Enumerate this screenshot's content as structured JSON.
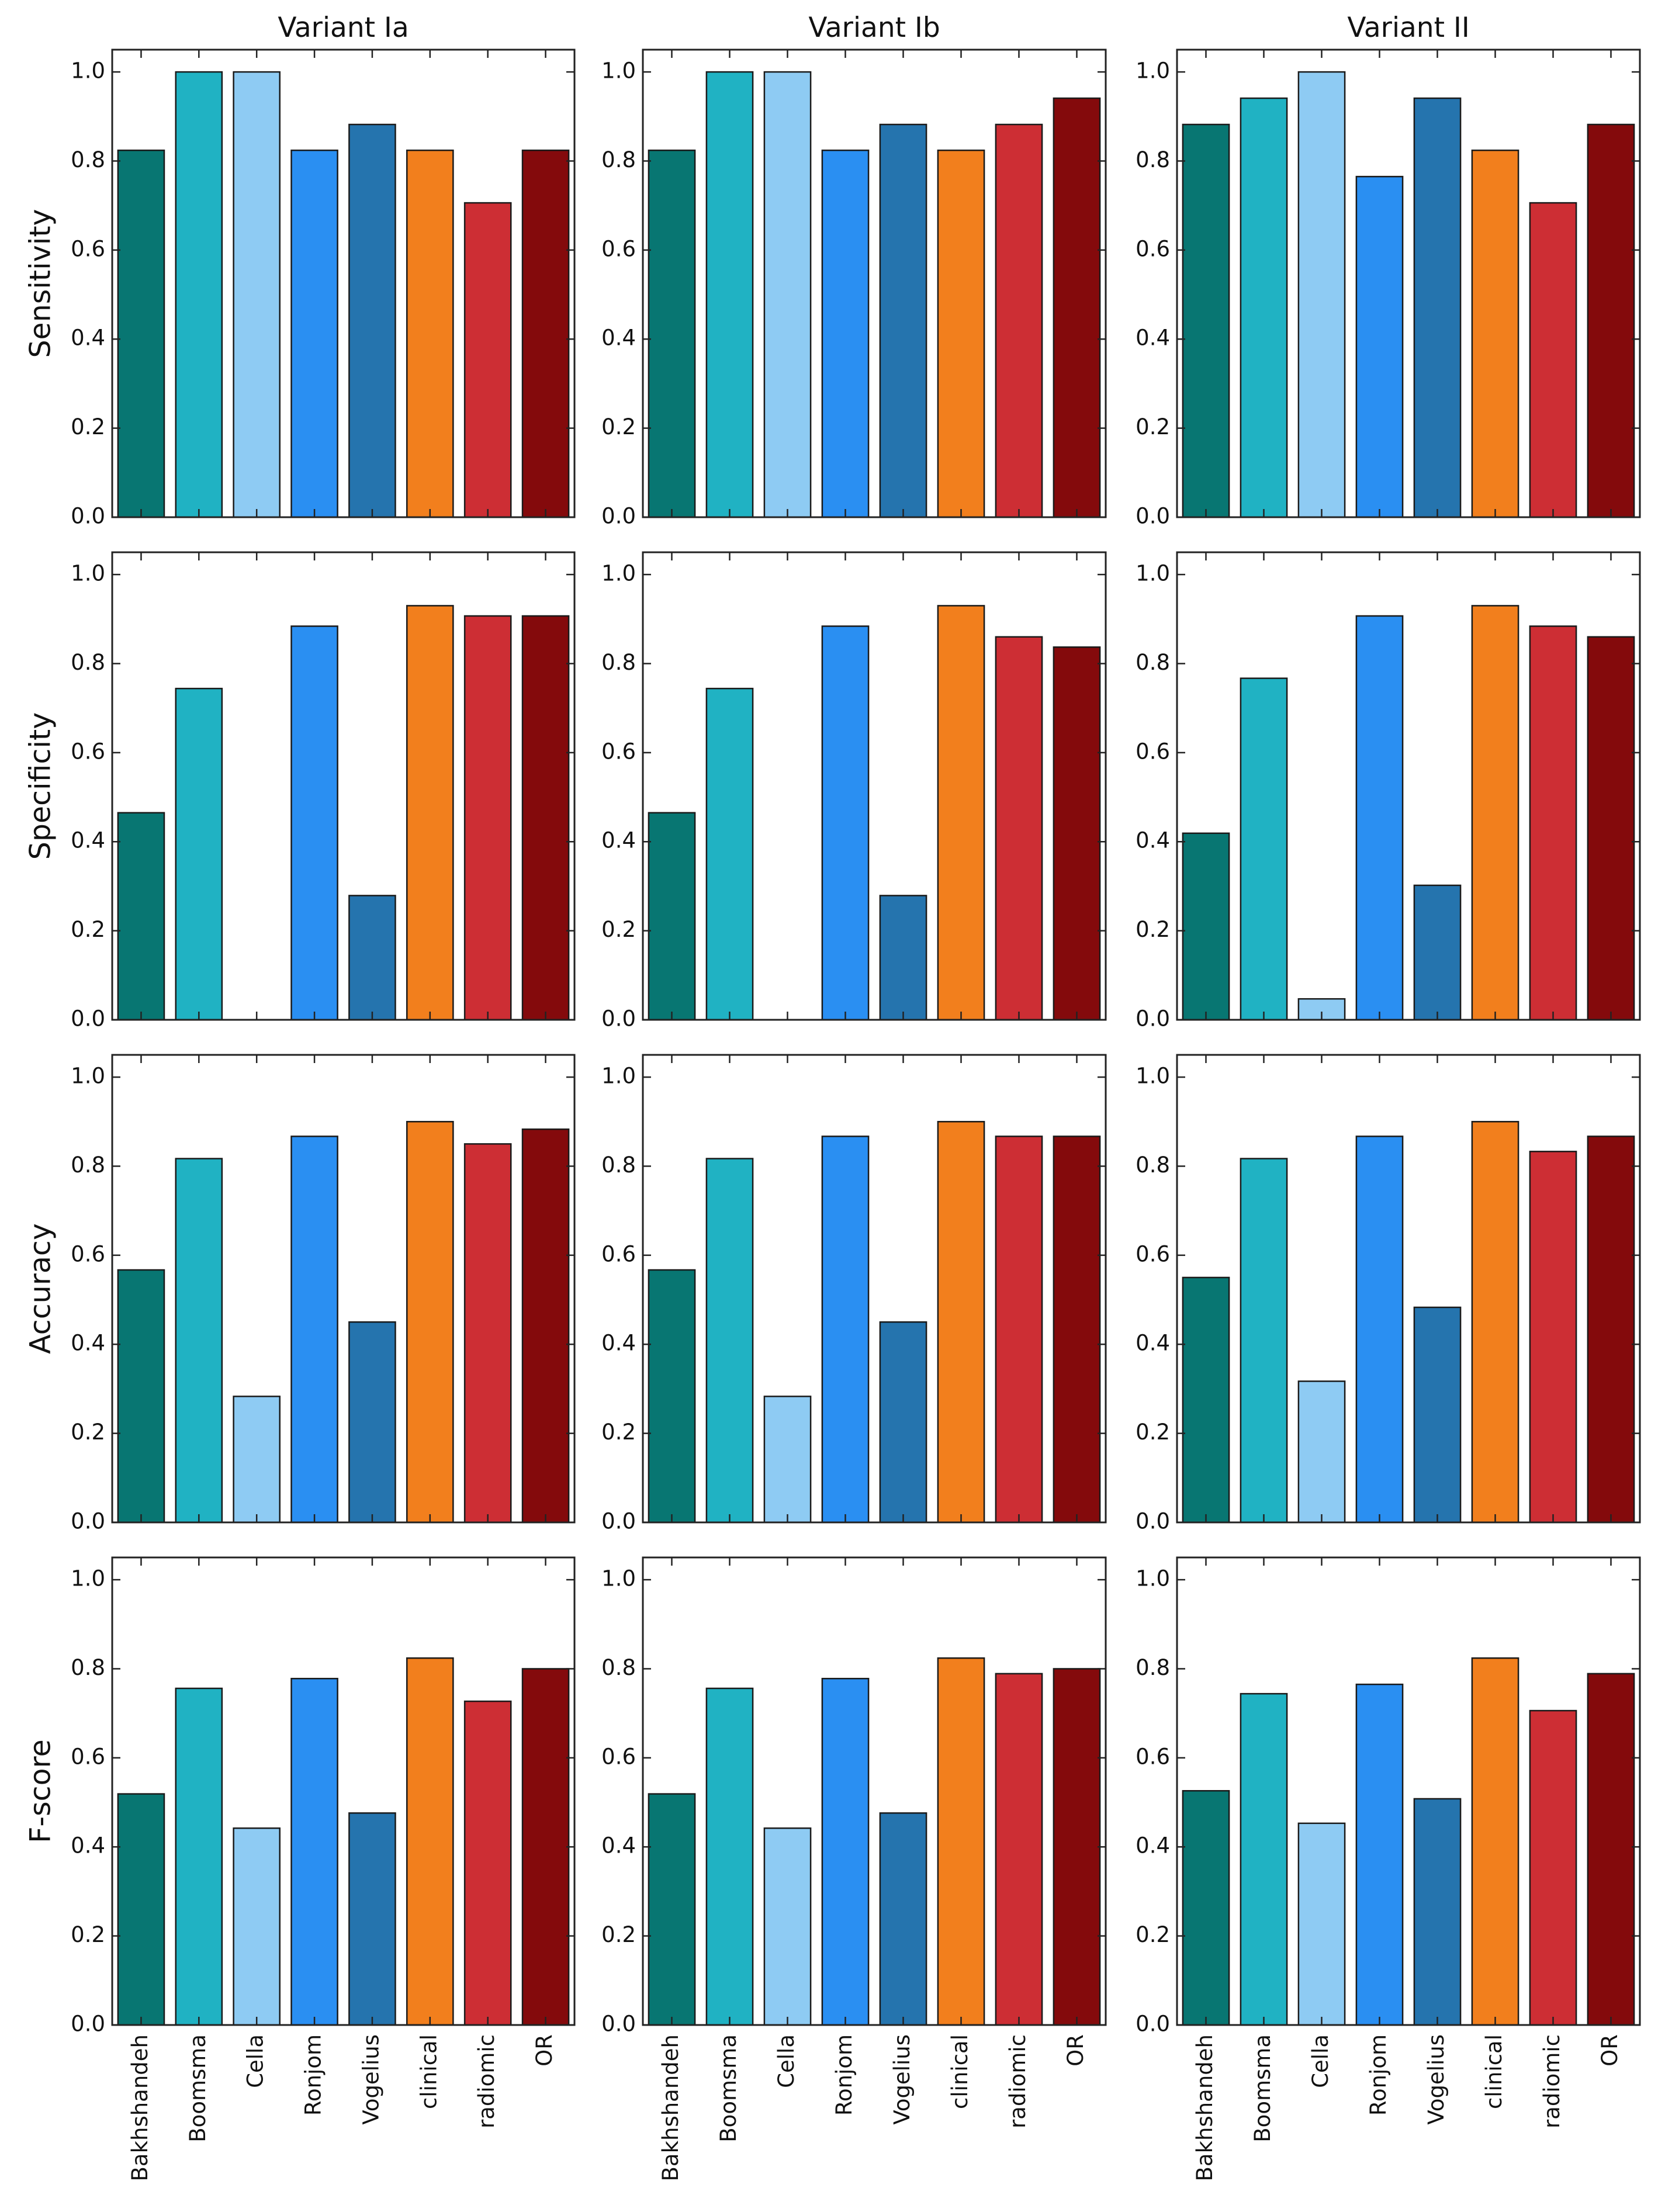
{
  "chart_data": {
    "type": "bar",
    "layout": "grid",
    "columns": [
      "Variant Ia",
      "Variant Ib",
      "Variant II"
    ],
    "rows": [
      "Sensitivity",
      "Specificity",
      "Accuracy",
      "F-score"
    ],
    "categories": [
      "Bakhshandeh",
      "Boomsma",
      "Cella",
      "Ronjom",
      "Vogelius",
      "clinical",
      "radiomic",
      "OR"
    ],
    "colors": [
      "#087672",
      "#20b2c3",
      "#8ecbf3",
      "#2a8ff2",
      "#2574ae",
      "#f27f1d",
      "#cd2e34",
      "#840a0c"
    ],
    "ylim": [
      0,
      1.05
    ],
    "yticks": [
      0.0,
      0.2,
      0.4,
      0.6,
      0.8,
      1.0
    ],
    "ytick_labels": [
      "0.0",
      "0.2",
      "0.4",
      "0.6",
      "0.8",
      "1.0"
    ],
    "grid": false,
    "values": {
      "Sensitivity": [
        [
          0.824,
          1.0,
          1.0,
          0.824,
          0.882,
          0.824,
          0.706,
          0.824
        ],
        [
          0.824,
          1.0,
          1.0,
          0.824,
          0.882,
          0.824,
          0.882,
          0.941
        ],
        [
          0.882,
          0.941,
          1.0,
          0.765,
          0.941,
          0.824,
          0.706,
          0.882
        ]
      ],
      "Specificity": [
        [
          0.465,
          0.744,
          0.0,
          0.884,
          0.279,
          0.93,
          0.907,
          0.907
        ],
        [
          0.465,
          0.744,
          0.0,
          0.884,
          0.279,
          0.93,
          0.86,
          0.837
        ],
        [
          0.419,
          0.767,
          0.047,
          0.907,
          0.302,
          0.93,
          0.884,
          0.86
        ]
      ],
      "Accuracy": [
        [
          0.567,
          0.817,
          0.283,
          0.867,
          0.45,
          0.9,
          0.85,
          0.883
        ],
        [
          0.567,
          0.817,
          0.283,
          0.867,
          0.45,
          0.9,
          0.867,
          0.867
        ],
        [
          0.55,
          0.817,
          0.317,
          0.867,
          0.483,
          0.9,
          0.833,
          0.867
        ]
      ],
      "F-score": [
        [
          0.519,
          0.756,
          0.442,
          0.778,
          0.476,
          0.824,
          0.727,
          0.8
        ],
        [
          0.519,
          0.756,
          0.442,
          0.778,
          0.476,
          0.824,
          0.789,
          0.8
        ],
        [
          0.526,
          0.744,
          0.453,
          0.765,
          0.508,
          0.824,
          0.706,
          0.789
        ]
      ]
    }
  }
}
